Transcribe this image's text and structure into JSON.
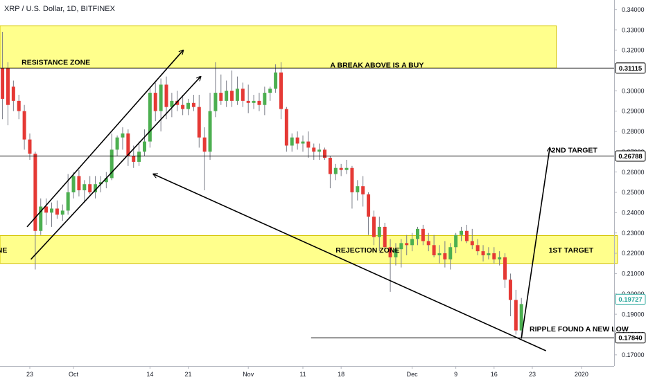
{
  "chart_title": "XRP / U.S. Dollar, 1D, BITFINEX",
  "colors": {
    "up": "#4caf50",
    "down": "#e53935",
    "zone_fill": "#ffff8c",
    "zone_stroke": "#d4c500",
    "last_price": "#26a69a",
    "grid_line": "#000000"
  },
  "chart_data": {
    "type": "candlestick",
    "title": "XRP / U.S. Dollar, 1D, BITFINEX",
    "y_tick_labels": [
      "0.34000",
      "0.33000",
      "0.32000",
      "0.31000",
      "0.30000",
      "0.29000",
      "0.28000",
      "0.27000",
      "0.26000",
      "0.25000",
      "0.24000",
      "0.23000",
      "0.22000",
      "0.21000",
      "0.20000",
      "0.19000",
      "0.18000",
      "0.17000"
    ],
    "y_ticks": [
      0.34,
      0.33,
      0.32,
      0.31,
      0.3,
      0.29,
      0.28,
      0.27,
      0.26,
      0.25,
      0.24,
      0.23,
      0.22,
      0.21,
      0.2,
      0.19,
      0.18,
      0.17
    ],
    "ylim": [
      0.1645,
      0.3445
    ],
    "x_tick_labels": [
      {
        "label": "23",
        "day": 0
      },
      {
        "label": "Oct",
        "day": 8
      },
      {
        "label": "14",
        "day": 22
      },
      {
        "label": "21",
        "day": 29
      },
      {
        "label": "Nov",
        "day": 40
      },
      {
        "label": "11",
        "day": 50
      },
      {
        "label": "18",
        "day": 57
      },
      {
        "label": "Dec",
        "day": 70
      },
      {
        "label": "9",
        "day": 78
      },
      {
        "label": "16",
        "day": 85
      },
      {
        "label": "23",
        "day": 92
      },
      {
        "label": "2020",
        "day": 101
      }
    ],
    "candles": [
      {
        "d": -6,
        "o": 0.321,
        "h": 0.325,
        "l": 0.3,
        "c": 0.303
      },
      {
        "d": -5,
        "o": 0.311,
        "h": 0.329,
        "l": 0.286,
        "c": 0.296
      },
      {
        "d": -4,
        "o": 0.311,
        "h": 0.314,
        "l": 0.283,
        "c": 0.293
      },
      {
        "d": -3,
        "o": 0.302,
        "h": 0.305,
        "l": 0.29,
        "c": 0.295
      },
      {
        "d": -2,
        "o": 0.295,
        "h": 0.298,
        "l": 0.286,
        "c": 0.29
      },
      {
        "d": -1,
        "o": 0.29,
        "h": 0.293,
        "l": 0.271,
        "c": 0.276
      },
      {
        "d": 0,
        "o": 0.276,
        "h": 0.279,
        "l": 0.266,
        "c": 0.269
      },
      {
        "d": 1,
        "o": 0.269,
        "h": 0.27,
        "l": 0.212,
        "c": 0.231
      },
      {
        "d": 2,
        "o": 0.231,
        "h": 0.247,
        "l": 0.229,
        "c": 0.243
      },
      {
        "d": 3,
        "o": 0.243,
        "h": 0.247,
        "l": 0.234,
        "c": 0.24
      },
      {
        "d": 4,
        "o": 0.24,
        "h": 0.245,
        "l": 0.233,
        "c": 0.242
      },
      {
        "d": 5,
        "o": 0.242,
        "h": 0.246,
        "l": 0.237,
        "c": 0.239
      },
      {
        "d": 6,
        "o": 0.239,
        "h": 0.244,
        "l": 0.236,
        "c": 0.241
      },
      {
        "d": 7,
        "o": 0.241,
        "h": 0.259,
        "l": 0.239,
        "c": 0.25
      },
      {
        "d": 8,
        "o": 0.25,
        "h": 0.26,
        "l": 0.247,
        "c": 0.258
      },
      {
        "d": 9,
        "o": 0.258,
        "h": 0.261,
        "l": 0.248,
        "c": 0.251
      },
      {
        "d": 10,
        "o": 0.251,
        "h": 0.256,
        "l": 0.245,
        "c": 0.254
      },
      {
        "d": 11,
        "o": 0.254,
        "h": 0.258,
        "l": 0.249,
        "c": 0.25
      },
      {
        "d": 12,
        "o": 0.25,
        "h": 0.258,
        "l": 0.247,
        "c": 0.254
      },
      {
        "d": 13,
        "o": 0.254,
        "h": 0.258,
        "l": 0.25,
        "c": 0.255
      },
      {
        "d": 14,
        "o": 0.255,
        "h": 0.26,
        "l": 0.252,
        "c": 0.257
      },
      {
        "d": 15,
        "o": 0.257,
        "h": 0.279,
        "l": 0.256,
        "c": 0.271
      },
      {
        "d": 16,
        "o": 0.271,
        "h": 0.278,
        "l": 0.268,
        "c": 0.277
      },
      {
        "d": 17,
        "o": 0.277,
        "h": 0.282,
        "l": 0.271,
        "c": 0.279
      },
      {
        "d": 18,
        "o": 0.279,
        "h": 0.281,
        "l": 0.263,
        "c": 0.268
      },
      {
        "d": 19,
        "o": 0.268,
        "h": 0.273,
        "l": 0.262,
        "c": 0.265
      },
      {
        "d": 20,
        "o": 0.265,
        "h": 0.275,
        "l": 0.263,
        "c": 0.27
      },
      {
        "d": 21,
        "o": 0.27,
        "h": 0.281,
        "l": 0.268,
        "c": 0.275
      },
      {
        "d": 22,
        "o": 0.275,
        "h": 0.302,
        "l": 0.272,
        "c": 0.299
      },
      {
        "d": 23,
        "o": 0.299,
        "h": 0.304,
        "l": 0.285,
        "c": 0.29
      },
      {
        "d": 24,
        "o": 0.29,
        "h": 0.306,
        "l": 0.28,
        "c": 0.303
      },
      {
        "d": 25,
        "o": 0.303,
        "h": 0.307,
        "l": 0.286,
        "c": 0.292
      },
      {
        "d": 26,
        "o": 0.292,
        "h": 0.299,
        "l": 0.287,
        "c": 0.295
      },
      {
        "d": 27,
        "o": 0.295,
        "h": 0.3,
        "l": 0.29,
        "c": 0.293
      },
      {
        "d": 28,
        "o": 0.293,
        "h": 0.298,
        "l": 0.288,
        "c": 0.291
      },
      {
        "d": 29,
        "o": 0.291,
        "h": 0.296,
        "l": 0.288,
        "c": 0.294
      },
      {
        "d": 30,
        "o": 0.294,
        "h": 0.298,
        "l": 0.29,
        "c": 0.292
      },
      {
        "d": 31,
        "o": 0.292,
        "h": 0.298,
        "l": 0.272,
        "c": 0.277
      },
      {
        "d": 32,
        "o": 0.277,
        "h": 0.282,
        "l": 0.251,
        "c": 0.27
      },
      {
        "d": 33,
        "o": 0.27,
        "h": 0.299,
        "l": 0.266,
        "c": 0.29
      },
      {
        "d": 34,
        "o": 0.29,
        "h": 0.314,
        "l": 0.287,
        "c": 0.299
      },
      {
        "d": 35,
        "o": 0.299,
        "h": 0.308,
        "l": 0.293,
        "c": 0.295
      },
      {
        "d": 36,
        "o": 0.295,
        "h": 0.305,
        "l": 0.292,
        "c": 0.3
      },
      {
        "d": 37,
        "o": 0.3,
        "h": 0.31,
        "l": 0.292,
        "c": 0.295
      },
      {
        "d": 38,
        "o": 0.295,
        "h": 0.307,
        "l": 0.293,
        "c": 0.301
      },
      {
        "d": 39,
        "o": 0.301,
        "h": 0.304,
        "l": 0.292,
        "c": 0.295
      },
      {
        "d": 40,
        "o": 0.295,
        "h": 0.303,
        "l": 0.289,
        "c": 0.294
      },
      {
        "d": 41,
        "o": 0.294,
        "h": 0.298,
        "l": 0.291,
        "c": 0.295
      },
      {
        "d": 42,
        "o": 0.295,
        "h": 0.299,
        "l": 0.29,
        "c": 0.293
      },
      {
        "d": 43,
        "o": 0.293,
        "h": 0.302,
        "l": 0.288,
        "c": 0.299
      },
      {
        "d": 44,
        "o": 0.299,
        "h": 0.302,
        "l": 0.295,
        "c": 0.301
      },
      {
        "d": 45,
        "o": 0.301,
        "h": 0.313,
        "l": 0.299,
        "c": 0.309
      },
      {
        "d": 46,
        "o": 0.309,
        "h": 0.314,
        "l": 0.286,
        "c": 0.291
      },
      {
        "d": 47,
        "o": 0.291,
        "h": 0.292,
        "l": 0.27,
        "c": 0.273
      },
      {
        "d": 48,
        "o": 0.273,
        "h": 0.279,
        "l": 0.27,
        "c": 0.277
      },
      {
        "d": 49,
        "o": 0.277,
        "h": 0.28,
        "l": 0.271,
        "c": 0.274
      },
      {
        "d": 50,
        "o": 0.274,
        "h": 0.278,
        "l": 0.27,
        "c": 0.275
      },
      {
        "d": 51,
        "o": 0.275,
        "h": 0.28,
        "l": 0.267,
        "c": 0.272
      },
      {
        "d": 52,
        "o": 0.272,
        "h": 0.274,
        "l": 0.266,
        "c": 0.27
      },
      {
        "d": 53,
        "o": 0.27,
        "h": 0.274,
        "l": 0.266,
        "c": 0.271
      },
      {
        "d": 54,
        "o": 0.271,
        "h": 0.272,
        "l": 0.266,
        "c": 0.267
      },
      {
        "d": 55,
        "o": 0.267,
        "h": 0.268,
        "l": 0.252,
        "c": 0.259
      },
      {
        "d": 56,
        "o": 0.259,
        "h": 0.264,
        "l": 0.256,
        "c": 0.262
      },
      {
        "d": 57,
        "o": 0.262,
        "h": 0.264,
        "l": 0.258,
        "c": 0.261
      },
      {
        "d": 58,
        "o": 0.261,
        "h": 0.266,
        "l": 0.259,
        "c": 0.262
      },
      {
        "d": 59,
        "o": 0.262,
        "h": 0.263,
        "l": 0.242,
        "c": 0.25
      },
      {
        "d": 60,
        "o": 0.25,
        "h": 0.256,
        "l": 0.246,
        "c": 0.253
      },
      {
        "d": 61,
        "o": 0.253,
        "h": 0.258,
        "l": 0.243,
        "c": 0.249
      },
      {
        "d": 62,
        "o": 0.249,
        "h": 0.25,
        "l": 0.229,
        "c": 0.238
      },
      {
        "d": 63,
        "o": 0.238,
        "h": 0.241,
        "l": 0.224,
        "c": 0.228
      },
      {
        "d": 64,
        "o": 0.228,
        "h": 0.238,
        "l": 0.221,
        "c": 0.233
      },
      {
        "d": 65,
        "o": 0.233,
        "h": 0.235,
        "l": 0.222,
        "c": 0.223
      },
      {
        "d": 66,
        "o": 0.223,
        "h": 0.227,
        "l": 0.201,
        "c": 0.218
      },
      {
        "d": 67,
        "o": 0.218,
        "h": 0.225,
        "l": 0.214,
        "c": 0.222
      },
      {
        "d": 68,
        "o": 0.222,
        "h": 0.227,
        "l": 0.213,
        "c": 0.225
      },
      {
        "d": 69,
        "o": 0.225,
        "h": 0.229,
        "l": 0.219,
        "c": 0.224
      },
      {
        "d": 70,
        "o": 0.224,
        "h": 0.23,
        "l": 0.221,
        "c": 0.227
      },
      {
        "d": 71,
        "o": 0.227,
        "h": 0.233,
        "l": 0.224,
        "c": 0.232
      },
      {
        "d": 72,
        "o": 0.232,
        "h": 0.234,
        "l": 0.224,
        "c": 0.226
      },
      {
        "d": 73,
        "o": 0.226,
        "h": 0.23,
        "l": 0.221,
        "c": 0.224
      },
      {
        "d": 74,
        "o": 0.224,
        "h": 0.229,
        "l": 0.218,
        "c": 0.219
      },
      {
        "d": 75,
        "o": 0.219,
        "h": 0.224,
        "l": 0.215,
        "c": 0.22
      },
      {
        "d": 76,
        "o": 0.22,
        "h": 0.226,
        "l": 0.213,
        "c": 0.217
      },
      {
        "d": 77,
        "o": 0.217,
        "h": 0.225,
        "l": 0.212,
        "c": 0.223
      },
      {
        "d": 78,
        "o": 0.223,
        "h": 0.23,
        "l": 0.22,
        "c": 0.229
      },
      {
        "d": 79,
        "o": 0.229,
        "h": 0.233,
        "l": 0.226,
        "c": 0.231
      },
      {
        "d": 80,
        "o": 0.231,
        "h": 0.234,
        "l": 0.225,
        "c": 0.226
      },
      {
        "d": 81,
        "o": 0.226,
        "h": 0.232,
        "l": 0.222,
        "c": 0.224
      },
      {
        "d": 82,
        "o": 0.224,
        "h": 0.227,
        "l": 0.219,
        "c": 0.221
      },
      {
        "d": 83,
        "o": 0.221,
        "h": 0.224,
        "l": 0.216,
        "c": 0.219
      },
      {
        "d": 84,
        "o": 0.219,
        "h": 0.223,
        "l": 0.217,
        "c": 0.22
      },
      {
        "d": 85,
        "o": 0.22,
        "h": 0.223,
        "l": 0.215,
        "c": 0.217
      },
      {
        "d": 86,
        "o": 0.217,
        "h": 0.221,
        "l": 0.214,
        "c": 0.218
      },
      {
        "d": 87,
        "o": 0.218,
        "h": 0.22,
        "l": 0.203,
        "c": 0.207
      },
      {
        "d": 88,
        "o": 0.207,
        "h": 0.21,
        "l": 0.189,
        "c": 0.197
      },
      {
        "d": 89,
        "o": 0.197,
        "h": 0.202,
        "l": 0.18,
        "c": 0.182
      },
      {
        "d": 90,
        "o": 0.182,
        "h": 0.198,
        "l": 0.178,
        "c": 0.195
      }
    ]
  },
  "annotations": [
    {
      "text": "RESISTANCE ZONE",
      "day": -1.5,
      "price": 0.3128
    },
    {
      "text": "A BREAK ABOVE IS A BUY",
      "day": 55,
      "price": 0.3114
    },
    {
      "text": "2ND TARGET",
      "day": 95.5,
      "price": 0.2695
    },
    {
      "text": "NE",
      "day": -6,
      "price": 0.2203
    },
    {
      "text": "REJECTION ZONE",
      "day": 56,
      "price": 0.2203
    },
    {
      "text": "1ST TARGET",
      "day": 95,
      "price": 0.2203
    },
    {
      "text": "RIPPLE FOUND A NEW LOW",
      "day": 91.5,
      "price": 0.1815
    }
  ],
  "zones": [
    {
      "label": "resistance",
      "day_from": -7,
      "day_to": 96.4,
      "price_top": 0.332,
      "price_bottom": 0.3112
    },
    {
      "label": "rejection",
      "day_from": -7,
      "day_to": 107.6,
      "price_top": 0.2287,
      "price_bottom": 0.215
    }
  ],
  "horizontal_lines": [
    {
      "price": 0.31115,
      "day_from": -7,
      "day_to": 117.5
    },
    {
      "price": 0.26788,
      "day_from": -7,
      "day_to": 117.5
    },
    {
      "price": 0.1784,
      "day_from": 51.5,
      "day_to": 117.5
    }
  ],
  "price_tags": [
    {
      "text": "0.31115",
      "price": 0.31115,
      "style": "outline"
    },
    {
      "text": "0.26788",
      "price": 0.26788,
      "style": "outline"
    },
    {
      "text": "0.19727",
      "price": 0.19727,
      "style": "last"
    },
    {
      "text": "0.17840",
      "price": 0.1784,
      "style": "outline"
    }
  ],
  "drawn_lines": [
    {
      "name": "channel-lower-line",
      "from": [
        0.2,
        0.217
      ],
      "to": [
        31.3,
        0.307
      ],
      "arrow": "end"
    },
    {
      "name": "channel-upper-line",
      "from": [
        -0.5,
        0.233
      ],
      "to": [
        28.1,
        0.32
      ],
      "arrow": "end"
    },
    {
      "name": "second-target-line",
      "from": [
        90.0,
        0.178
      ],
      "to": [
        95.2,
        0.272
      ],
      "arrow": "end"
    },
    {
      "name": "downtrend-line",
      "from": [
        22.6,
        0.259
      ],
      "to": [
        94.5,
        0.172
      ],
      "arrow": "start"
    }
  ]
}
